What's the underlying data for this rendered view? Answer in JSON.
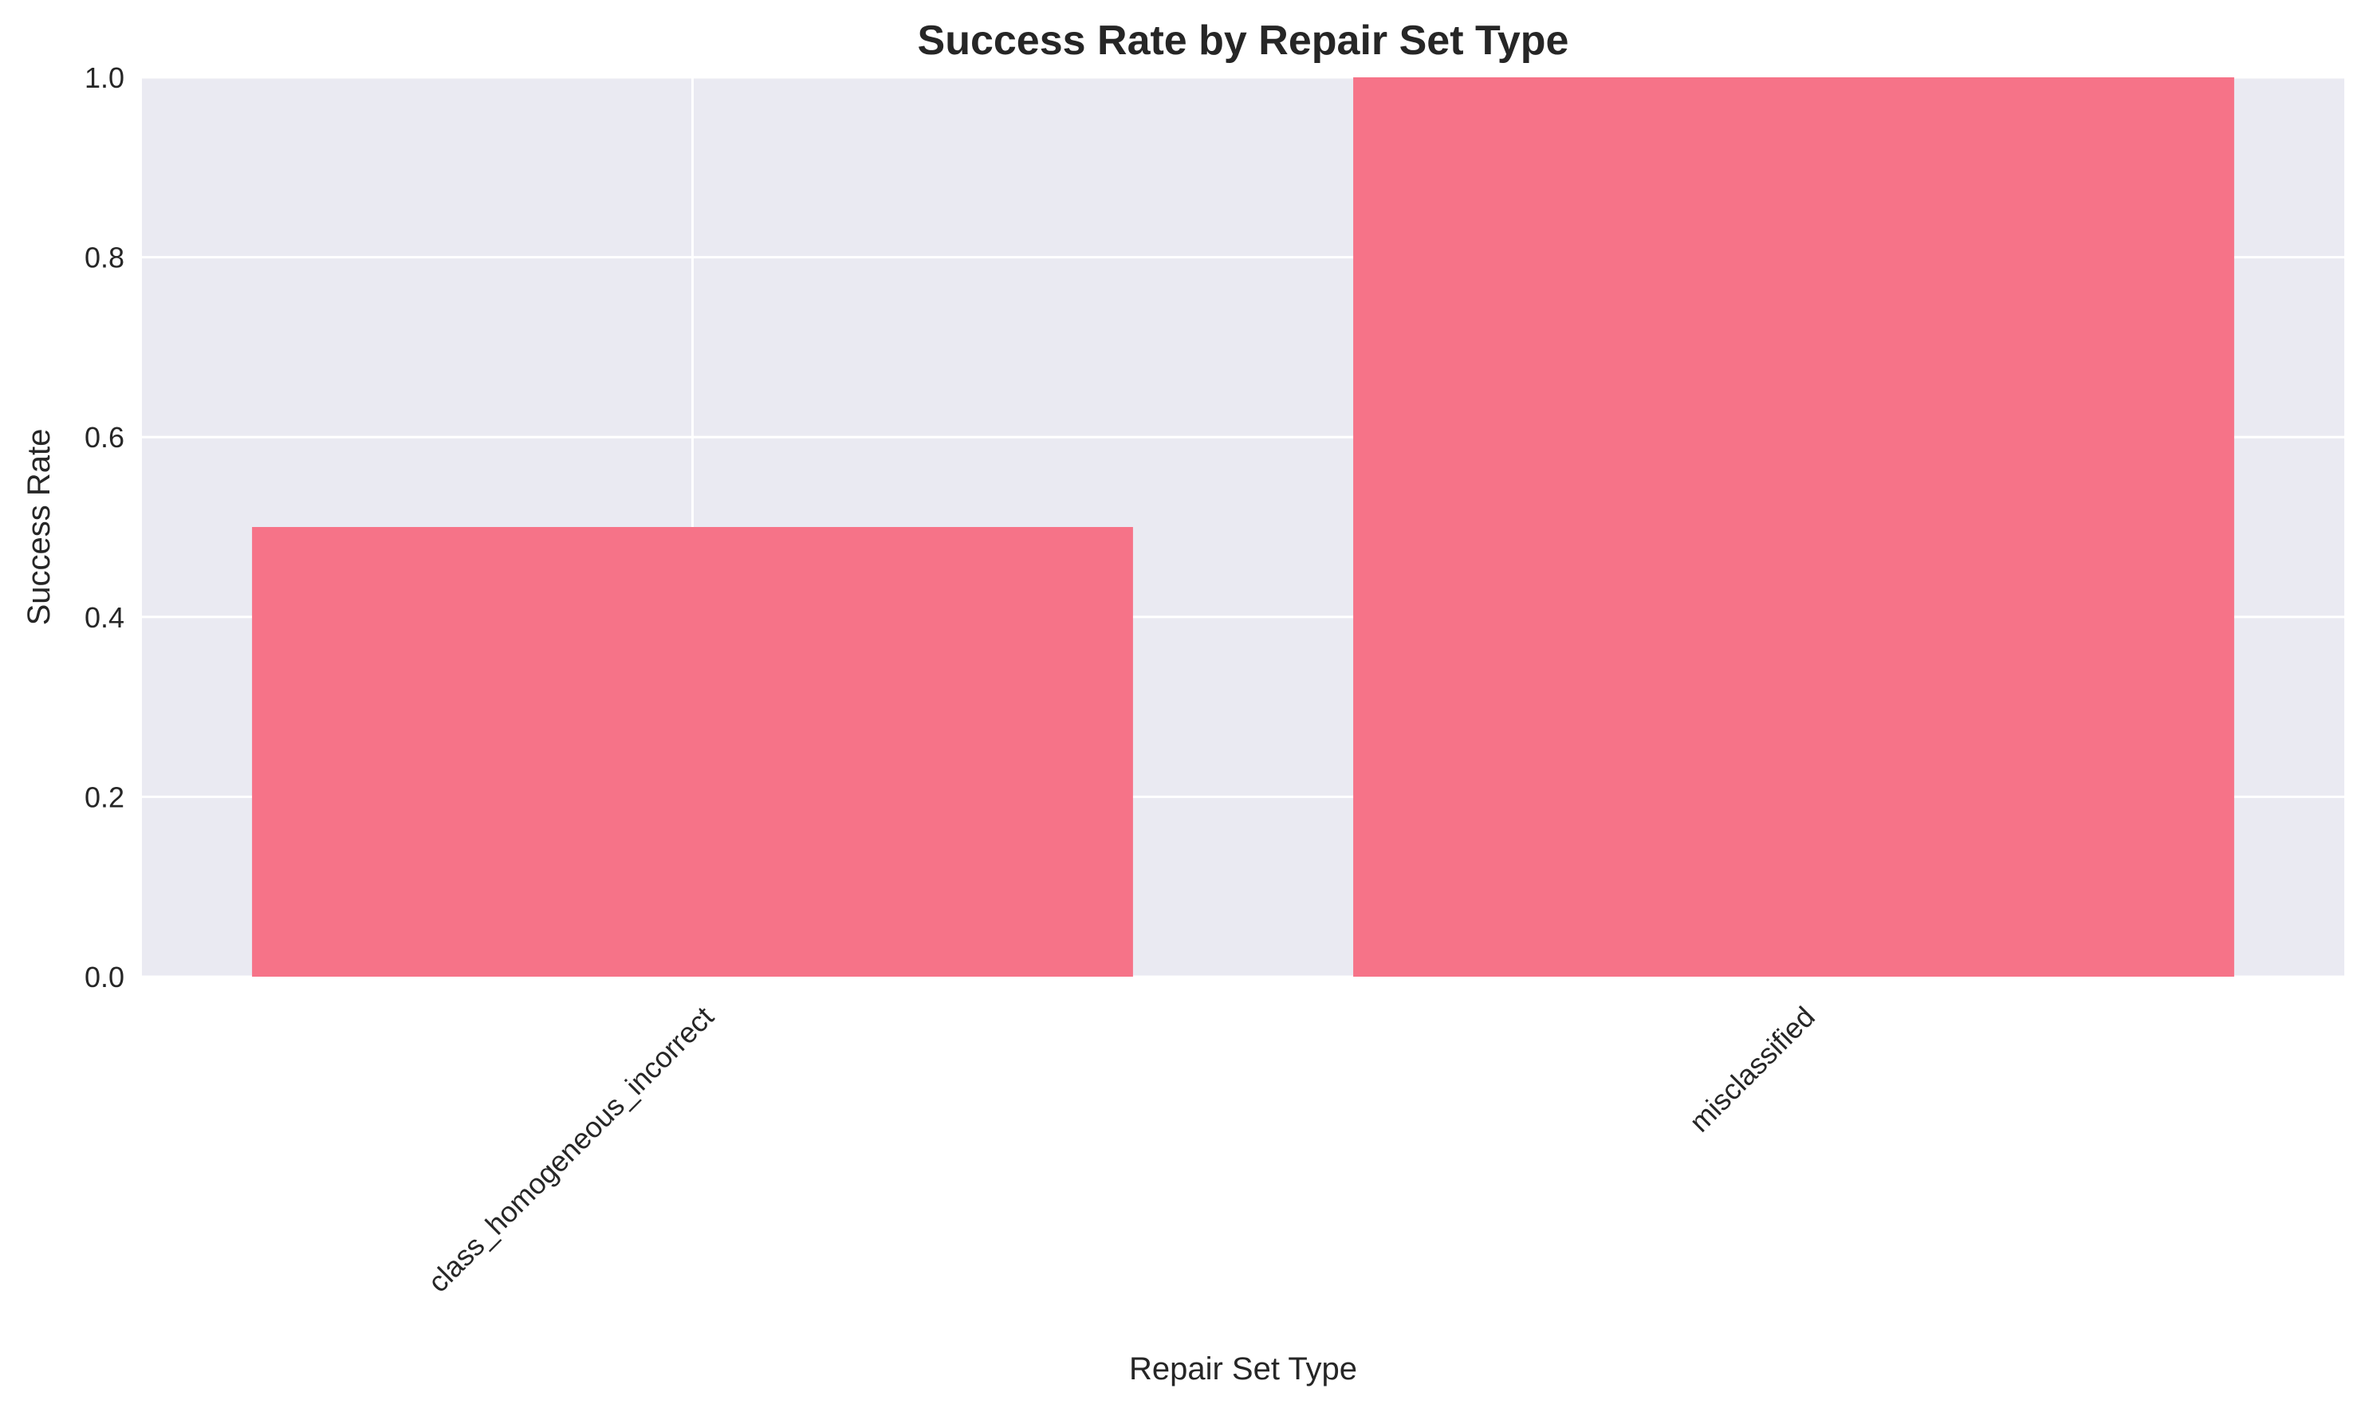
{
  "chart_data": {
    "type": "bar",
    "title": "Success Rate by Repair Set Type",
    "xlabel": "Repair Set Type",
    "ylabel": "Success Rate",
    "categories": [
      "class_homogeneous_incorrect",
      "misclassified"
    ],
    "values": [
      0.5,
      1.0
    ],
    "ylim": [
      0,
      1.0
    ],
    "yticks": [
      0.0,
      0.2,
      0.4,
      0.6,
      0.8,
      1.0
    ],
    "ytick_labels": [
      "0.0",
      "0.2",
      "0.4",
      "0.6",
      "0.8",
      "1.0"
    ],
    "grid": true,
    "legend": "none",
    "bar_color": "#f67388",
    "plot_background": "#eaeaf2",
    "x_tick_rotation_deg": 45
  }
}
